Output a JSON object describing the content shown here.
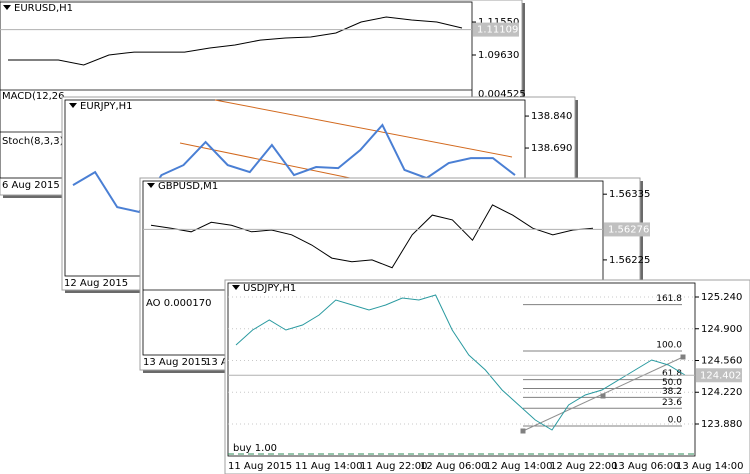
{
  "windows": [
    {
      "symbol": "EURUSD,H1",
      "color": "#000000",
      "ylim": [
        1.0771,
        1.1225
      ],
      "yticks": [
        {
          "value": 1.1155,
          "label": "1.11550"
        },
        {
          "value": 1.0963,
          "label": "1.09630"
        }
      ],
      "price": 1.11109,
      "prices": [
        1.0934,
        1.0934,
        1.0934,
        1.0905,
        1.0963,
        1.098,
        1.098,
        1.098,
        1.1004,
        1.1021,
        1.105,
        1.1062,
        1.1068,
        1.1091,
        1.1155,
        1.1184,
        1.1167,
        1.1155,
        1.112
      ],
      "indicators": [
        "MACD(12,26,",
        "Stoch(8,3,3) 2"
      ],
      "indicator_ticks": [
        0.004525
      ],
      "dates": [
        "6 Aug 2015"
      ],
      "grid": false
    },
    {
      "symbol": "EURJPY,H1",
      "color": "#4a7fd4",
      "ylim": [
        138.118,
        138.859
      ],
      "yticks": [
        {
          "value": 138.84,
          "label": "138.840"
        },
        {
          "value": 138.69,
          "label": "138.690"
        }
      ],
      "prices": [
        138.516,
        138.577,
        138.413,
        138.39,
        138.563,
        138.61,
        138.718,
        138.61,
        138.577,
        138.704,
        138.563,
        138.601,
        138.596,
        138.681,
        138.798,
        138.587,
        138.549,
        138.62,
        138.643,
        138.643,
        138.563
      ],
      "dates": [
        "12 Aug 2015"
      ],
      "grid": false
    },
    {
      "symbol": "GBPUSD,M1",
      "color": "#000000",
      "ylim": [
        1.56183,
        1.56342
      ],
      "yticks": [
        1.56335,
        1.56225
      ],
      "price": 1.56276,
      "prices": [
        1.56283,
        1.56278,
        1.56272,
        1.56288,
        1.56283,
        1.56272,
        1.56275,
        1.56267,
        1.5625,
        1.56228,
        1.56222,
        1.56225,
        1.56212,
        1.56267,
        1.563,
        1.56292,
        1.56258,
        1.56317,
        1.563,
        1.56278,
        1.56267,
        1.56275,
        1.56278
      ],
      "indicators": [
        "AO 0.000170"
      ],
      "dates": [
        "13 Aug 2015",
        "13 Au"
      ],
      "grid": false
    },
    {
      "symbol": "USDJPY,H1",
      "color": "#2a9aa0",
      "ylim": [
        123.548,
        125.315
      ],
      "yticks": [
        {
          "value": 125.24,
          "label": "125.240"
        },
        {
          "value": 124.9,
          "label": "124.900"
        },
        {
          "value": 124.56,
          "label": "124.560"
        },
        {
          "value": 124.22,
          "label": "124.220"
        },
        {
          "value": 123.88,
          "label": "123.880"
        }
      ],
      "price": 124.402,
      "prices": [
        124.726,
        124.887,
        124.994,
        124.887,
        124.94,
        125.047,
        125.208,
        125.154,
        125.101,
        125.154,
        125.229,
        125.208,
        125.261,
        124.887,
        124.619,
        124.458,
        124.244,
        124.083,
        123.923,
        123.816,
        124.083,
        124.191,
        124.244,
        124.351,
        124.458,
        124.565,
        124.512,
        124.405
      ],
      "fib_levels": [
        161.8,
        {
          "value": 100,
          "label": "100.0"
        },
        61.8,
        {
          "value": 50,
          "label": "50.0"
        },
        38.2,
        23.6,
        {
          "value": 0,
          "label": "0.0"
        }
      ],
      "indicators": [
        "buy 1.00"
      ],
      "dates": [
        "11 Aug 2015",
        "11 Aug 14:00",
        "11 Aug 22:00",
        "12 Aug 06:00",
        "12 Aug 14:00",
        "12 Aug 22:00",
        "13 Aug 06:00",
        "13 Aug 14:00"
      ],
      "grid": true
    }
  ]
}
